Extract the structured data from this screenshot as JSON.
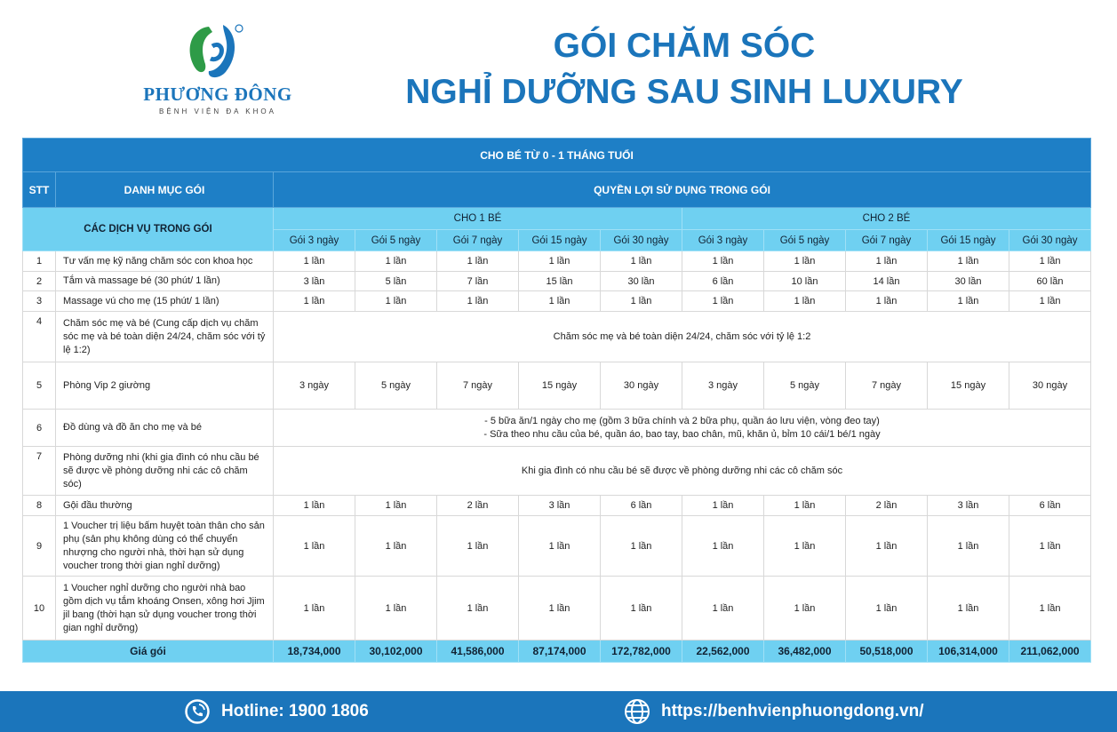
{
  "logo": {
    "brand": "PHƯƠNG ĐÔNG",
    "subtitle": "BỆNH VIỆN ĐA KHOA"
  },
  "title": {
    "line1": "GÓI CHĂM SÓC",
    "line2": "NGHỈ DƯỠNG SAU SINH LUXURY"
  },
  "table": {
    "caption": "CHO BÉ TỪ 0 - 1 THÁNG TUỔI",
    "col_stt": "STT",
    "col_category": "DANH MỤC GÓI",
    "col_benefits": "QUYỀN LỢI SỬ DỤNG TRONG GÓI",
    "services_label": "CÁC DỊCH VỤ TRONG GÓI",
    "group1": "CHO 1 BÉ",
    "group2": "CHO 2 BÉ",
    "packages": [
      "Gói 3 ngày",
      "Gói 5 ngày",
      "Gói 7 ngày",
      "Gói 15 ngày",
      "Gói 30 ngày",
      "Gói 3 ngày",
      "Gói 5 ngày",
      "Gói 7 ngày",
      "Gói 15 ngày",
      "Gói 30 ngày"
    ],
    "rows": [
      {
        "stt": "1",
        "name": "Tư vấn mẹ kỹ năng chăm sóc con khoa học",
        "values": [
          "1 lần",
          "1 lần",
          "1 lần",
          "1 lần",
          "1 lần",
          "1 lần",
          "1 lần",
          "1 lần",
          "1 lần",
          "1 lần"
        ]
      },
      {
        "stt": "2",
        "name": "Tắm và massage bé (30 phút/ 1 lần)",
        "values": [
          "3 lần",
          "5 lần",
          "7 lần",
          "15 lần",
          "30 lần",
          "6 lần",
          "10 lần",
          "14 lần",
          "30 lần",
          "60 lần"
        ]
      },
      {
        "stt": "3",
        "name": "Massage vú cho mẹ (15 phút/ 1 lần)",
        "values": [
          "1 lần",
          "1 lần",
          "1 lần",
          "1 lần",
          "1 lần",
          "1 lần",
          "1 lần",
          "1 lần",
          "1 lần",
          "1 lần"
        ]
      },
      {
        "stt": "4",
        "name": "Chăm sóc mẹ và bé (Cung cấp dịch vụ chăm sóc mẹ và bé toàn diện 24/24, chăm sóc với tỷ lệ 1:2)",
        "merged": [
          "Chăm sóc mẹ và bé toàn diện 24/24, chăm sóc với tỷ lệ 1:2"
        ]
      },
      {
        "stt": "5",
        "name": "Phòng Vip 2 giường",
        "values": [
          "3 ngày",
          "5 ngày",
          "7 ngày",
          "15 ngày",
          "30 ngày",
          "3 ngày",
          "5 ngày",
          "7 ngày",
          "15 ngày",
          "30 ngày"
        ]
      },
      {
        "stt": "6",
        "name": "Đồ dùng và đồ ăn cho mẹ và bé",
        "merged": [
          "- 5 bữa ăn/1 ngày cho mẹ (gồm 3 bữa chính và 2 bữa phụ, quần áo lưu viện, vòng đeo tay)",
          "- Sữa theo nhu cầu của bé, quần áo, bao tay, bao chân, mũ, khăn ủ, bỉm 10 cái/1 bé/1 ngày"
        ]
      },
      {
        "stt": "7",
        "name": "Phòng dưỡng nhi (khi gia đình có nhu cầu bé sẽ được về phòng dưỡng nhi các cô chăm sóc)",
        "merged": [
          "Khi gia đình có nhu cầu bé sẽ được về phòng dưỡng nhi các cô chăm sóc"
        ]
      },
      {
        "stt": "8",
        "name": "Gội đầu thường",
        "values": [
          "1 lần",
          "1 lần",
          "2 lần",
          "3 lần",
          "6 lần",
          "1 lần",
          "1 lần",
          "2 lần",
          "3 lần",
          "6 lần"
        ]
      },
      {
        "stt": "9",
        "name": "1 Voucher trị liệu bấm huyệt toàn thân cho sản phụ (sản phụ không dùng có thể chuyển nhượng cho người nhà, thời hạn sử dụng voucher trong thời gian nghỉ dưỡng)",
        "values": [
          "1 lần",
          "1 lần",
          "1 lần",
          "1 lần",
          "1 lần",
          "1 lần",
          "1 lần",
          "1 lần",
          "1 lần",
          "1 lần"
        ]
      },
      {
        "stt": "10",
        "name": "1 Voucher nghỉ dưỡng cho người nhà bao gồm dịch vụ tắm khoáng Onsen, xông hơi Jjim jil bang (thời hạn sử dụng voucher trong thời gian nghỉ dưỡng)",
        "values": [
          "1 lần",
          "1 lần",
          "1 lần",
          "1 lần",
          "1 lần",
          "1 lần",
          "1 lần",
          "1 lần",
          "1 lần",
          "1 lần"
        ]
      }
    ],
    "price_label": "Giá gói",
    "prices": [
      "18,734,000",
      "30,102,000",
      "41,586,000",
      "87,174,000",
      "172,782,000",
      "22,562,000",
      "36,482,000",
      "50,518,000",
      "106,314,000",
      "211,062,000"
    ]
  },
  "footer": {
    "hotline": "Hotline: 1900 1806",
    "website": "https://benhvienphuongdong.vn/",
    "hotline_icon": "phone-icon",
    "website_icon": "globe-icon"
  },
  "colors": {
    "primary": "#1b75bb",
    "header": "#1e7fc6",
    "light": "#6fd0f1",
    "logo_green": "#2e9b47"
  }
}
